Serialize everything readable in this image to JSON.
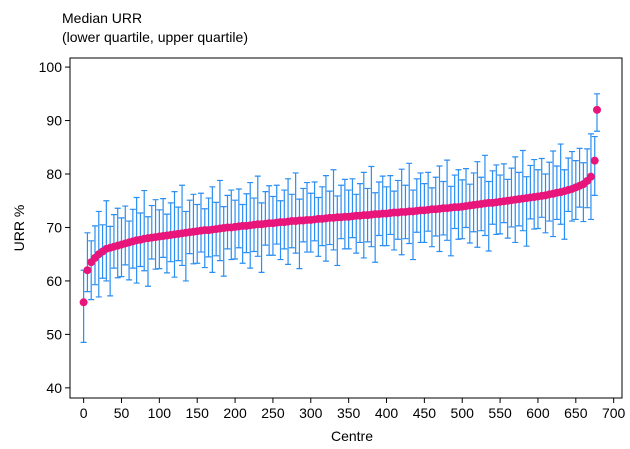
{
  "chart_data": {
    "type": "errorbar",
    "title": "Median URR",
    "subtitle": "(lower quartile, upper quartile)",
    "x_label": "Centre",
    "y_label": "URR %",
    "xlim": [
      -18,
      711
    ],
    "ylim": [
      38.1,
      101.7
    ],
    "xticks": [
      0,
      50,
      100,
      150,
      200,
      250,
      300,
      350,
      400,
      450,
      500,
      550,
      600,
      650,
      700
    ],
    "yticks": [
      40,
      50,
      60,
      70,
      80,
      90,
      100
    ],
    "color": "#e8157a",
    "errorbar_color": "#2b8ef2",
    "x": [
      0,
      5,
      10,
      15,
      20,
      25,
      30,
      35,
      40,
      45,
      50,
      55,
      60,
      65,
      70,
      75,
      80,
      85,
      90,
      95,
      100,
      105,
      110,
      115,
      120,
      125,
      130,
      135,
      140,
      145,
      150,
      155,
      160,
      165,
      170,
      175,
      180,
      185,
      190,
      195,
      200,
      205,
      210,
      215,
      220,
      225,
      230,
      235,
      240,
      245,
      250,
      255,
      260,
      265,
      270,
      275,
      280,
      285,
      290,
      295,
      300,
      305,
      310,
      315,
      320,
      325,
      330,
      335,
      340,
      345,
      350,
      355,
      360,
      365,
      370,
      375,
      380,
      385,
      390,
      395,
      400,
      405,
      410,
      415,
      420,
      425,
      430,
      435,
      440,
      445,
      450,
      455,
      460,
      465,
      470,
      475,
      480,
      485,
      490,
      495,
      500,
      505,
      510,
      515,
      520,
      525,
      530,
      535,
      540,
      545,
      550,
      555,
      560,
      565,
      570,
      575,
      580,
      585,
      590,
      595,
      600,
      605,
      610,
      615,
      620,
      625,
      630,
      635,
      640,
      645,
      650,
      655,
      660,
      665,
      670,
      675,
      678
    ],
    "values": [
      56,
      62,
      63.5,
      64.3,
      65,
      65.5,
      66,
      66.2,
      66.4,
      66.6,
      66.8,
      67,
      67.2,
      67.4,
      67.6,
      67.7,
      67.9,
      68,
      68.1,
      68.2,
      68.3,
      68.4,
      68.5,
      68.6,
      68.7,
      68.8,
      68.9,
      69,
      69.1,
      69.2,
      69.3,
      69.4,
      69.5,
      69.5,
      69.6,
      69.7,
      69.8,
      69.9,
      70,
      70,
      70.1,
      70.2,
      70.3,
      70.3,
      70.4,
      70.5,
      70.6,
      70.6,
      70.7,
      70.8,
      70.8,
      70.9,
      71,
      71,
      71.1,
      71.2,
      71.2,
      71.3,
      71.3,
      71.4,
      71.4,
      71.5,
      71.6,
      71.6,
      71.7,
      71.8,
      71.8,
      71.9,
      71.9,
      72,
      72,
      72.1,
      72.2,
      72.2,
      72.3,
      72.3,
      72.4,
      72.5,
      72.5,
      72.6,
      72.6,
      72.7,
      72.8,
      72.8,
      72.9,
      72.9,
      73,
      73,
      73.1,
      73.2,
      73.2,
      73.3,
      73.4,
      73.4,
      73.5,
      73.6,
      73.6,
      73.7,
      73.8,
      73.8,
      73.9,
      74,
      74.1,
      74.2,
      74.3,
      74.4,
      74.5,
      74.6,
      74.6,
      74.7,
      74.8,
      74.9,
      75,
      75.1,
      75.2,
      75.3,
      75.4,
      75.5,
      75.6,
      75.7,
      75.8,
      75.9,
      76,
      76.2,
      76.3,
      76.5,
      76.6,
      76.8,
      77,
      77.2,
      77.5,
      77.8,
      78.1,
      78.7,
      79.5,
      82.5,
      92
    ],
    "lower": [
      48.5,
      58,
      56.5,
      59.3,
      57,
      60.5,
      60,
      57.2,
      62.4,
      60.6,
      60.8,
      63,
      60.2,
      62.4,
      59.6,
      62.7,
      61.9,
      59,
      64.1,
      62.2,
      62.3,
      64.4,
      61.5,
      63.6,
      60.7,
      63.8,
      62.9,
      60,
      65.1,
      63.2,
      63.3,
      65.4,
      62.5,
      64.5,
      61.6,
      64.7,
      63.8,
      60.9,
      66,
      64,
      64.1,
      66.2,
      63.3,
      65.3,
      62.4,
      65.5,
      64.6,
      61.6,
      66.7,
      64.8,
      64.8,
      66.9,
      64,
      66,
      63.1,
      66.2,
      65.2,
      62.3,
      67.3,
      65.4,
      65.4,
      67.5,
      64.6,
      66.6,
      63.7,
      66.8,
      65.8,
      62.9,
      67.9,
      66,
      66,
      68.1,
      65.2,
      67.2,
      64.3,
      67.3,
      66.4,
      63.5,
      68.5,
      66.6,
      66.6,
      68.7,
      65.8,
      67.8,
      64.9,
      67.9,
      67,
      64,
      69.1,
      67.2,
      67.2,
      69.3,
      66.4,
      68.4,
      65.5,
      68.6,
      67.6,
      64.7,
      69.8,
      67.8,
      67.9,
      70,
      67.1,
      69.2,
      66.3,
      69.4,
      68.5,
      65.6,
      70.6,
      68.7,
      68.8,
      70.9,
      68,
      70.1,
      67.2,
      70.3,
      69.4,
      66.5,
      71.6,
      69.7,
      69.8,
      71.9,
      69,
      71.2,
      68.3,
      71.5,
      70.6,
      67.8,
      73,
      71.2,
      71.5,
      73.8,
      71.1,
      73.7,
      71.5,
      76,
      88
    ],
    "upper": [
      62,
      69,
      67.5,
      70.3,
      73,
      70.5,
      75,
      70.2,
      72.4,
      73.6,
      71.8,
      74,
      71.2,
      73.4,
      75.6,
      72.7,
      76.9,
      72,
      74.1,
      75.2,
      73.3,
      75.4,
      72.5,
      74.6,
      76.7,
      73.8,
      77.9,
      73,
      75.1,
      76.2,
      74.3,
      76.4,
      73.5,
      75.5,
      77.6,
      74.7,
      78.8,
      73.9,
      76,
      77,
      75.1,
      77.2,
      74.3,
      76.3,
      78.4,
      75.5,
      79.6,
      74.6,
      76.7,
      77.8,
      75.8,
      77.9,
      75,
      77,
      79.1,
      76.2,
      80.2,
      75.3,
      77.3,
      78.4,
      76.4,
      78.5,
      75.6,
      77.6,
      79.7,
      76.8,
      80.8,
      75.9,
      77.9,
      79,
      77,
      79.1,
      76.2,
      78.2,
      80.3,
      77.3,
      81.4,
      76.5,
      78.5,
      79.6,
      77.6,
      79.7,
      76.8,
      78.8,
      80.9,
      77.9,
      82,
      77,
      79.1,
      80.2,
      78.2,
      80.3,
      77.4,
      79.4,
      81.5,
      78.6,
      82.6,
      77.7,
      79.8,
      80.8,
      78.9,
      81,
      78.1,
      80.2,
      82.3,
      79.4,
      83.5,
      78.6,
      80.6,
      81.7,
      79.8,
      81.9,
      79,
      81.1,
      83.2,
      80.3,
      84.4,
      79.5,
      81.6,
      82.7,
      80.8,
      82.9,
      80,
      82.2,
      84.3,
      81.5,
      85.6,
      80.8,
      83,
      84.2,
      82.5,
      84.8,
      82.1,
      84.7,
      87.5,
      87,
      95
    ]
  }
}
